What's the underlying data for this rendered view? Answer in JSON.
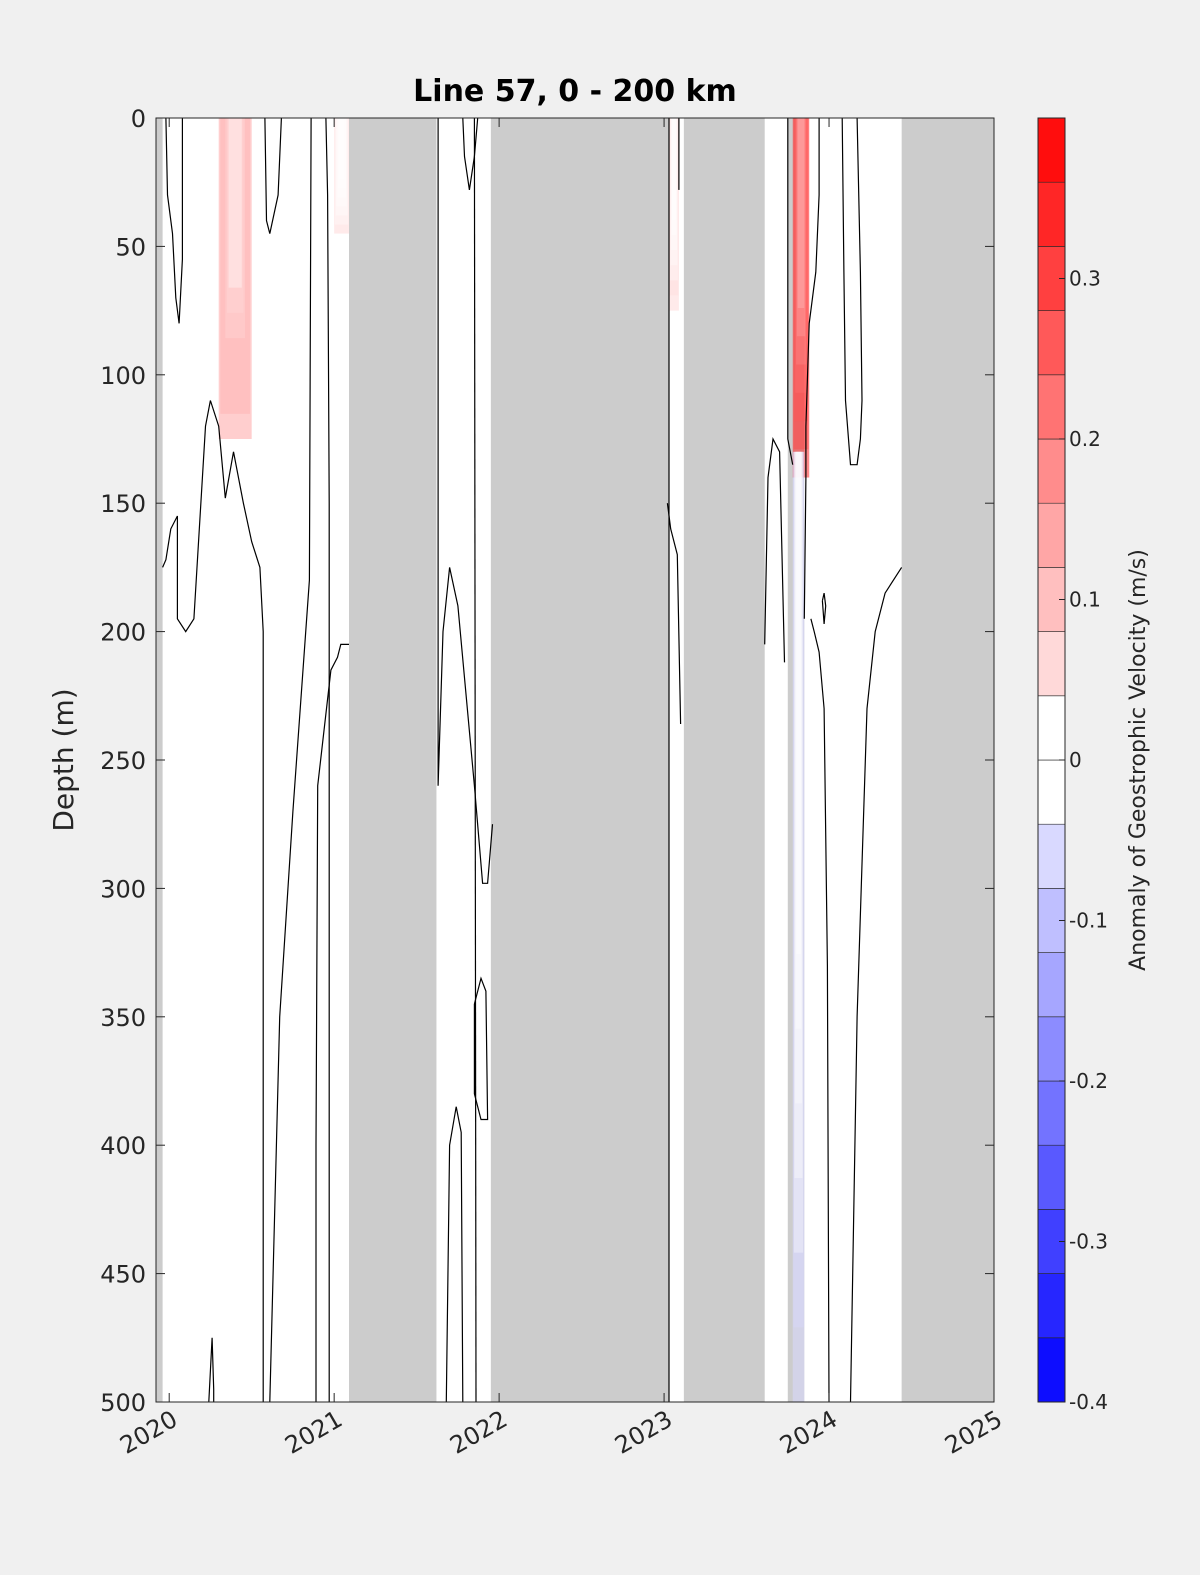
{
  "chart_data": {
    "type": "heatmap",
    "title": "Line 57, 0 - 200 km",
    "ylabel": "Depth (m)",
    "colorbar_label": "Anomaly of Geostrophic Velocity (m/s)",
    "x_ticks": [
      "2020",
      "2021",
      "2022",
      "2023",
      "2024",
      "2025"
    ],
    "x_range": [
      2019.92,
      2025.0
    ],
    "y_ticks": [
      "0",
      "50",
      "100",
      "150",
      "200",
      "250",
      "300",
      "350",
      "400",
      "450",
      "500"
    ],
    "y_range": [
      0,
      500
    ],
    "y_reversed": true,
    "colorbar_ticks": [
      "0.3",
      "0.2",
      "0.1",
      "0",
      "-0.1",
      "-0.2",
      "-0.3",
      "-0.4"
    ],
    "colorbar_range": [
      -0.4,
      0.4
    ],
    "colorbar_levels": 20,
    "colors": {
      "missing_data": "#cccccc",
      "positive": "#ff0000",
      "negative": "#0000ff",
      "zero": "#ffffff",
      "background": "#f0f0f0",
      "contour": "#000000"
    },
    "missing_data_periods": [
      [
        2019.92,
        2019.96
      ],
      [
        2021.09,
        2021.62
      ],
      [
        2021.95,
        2023.03
      ],
      [
        2023.12,
        2023.61
      ],
      [
        2023.75,
        2023.85
      ],
      [
        2024.44,
        2025.0
      ]
    ],
    "anomaly_patches": [
      {
        "x": [
          2020.3,
          2020.5
        ],
        "depth": [
          0,
          125
        ],
        "peak": 0.14
      },
      {
        "x": [
          2023.78,
          2023.88
        ],
        "depth": [
          0,
          140
        ],
        "peak": 0.35
      },
      {
        "x": [
          2023.03,
          2023.09
        ],
        "depth": [
          0,
          75
        ],
        "peak": 0.05
      },
      {
        "x": [
          2020.68,
          2020.8
        ],
        "depth": [
          0,
          60
        ],
        "peak": 0.03
      },
      {
        "x": [
          2021.0,
          2021.09
        ],
        "depth": [
          0,
          45
        ],
        "peak": 0.04
      },
      {
        "x": [
          2024.1,
          2024.16
        ],
        "depth": [
          0,
          20
        ],
        "peak": 0.03
      },
      {
        "x": [
          2024.28,
          2024.44
        ],
        "depth": [
          0,
          60
        ],
        "peak": -0.03
      },
      {
        "x": [
          2020.31,
          2020.4
        ],
        "depth": [
          170,
          500
        ],
        "peak": -0.02
      },
      {
        "x": [
          2020.74,
          2020.8
        ],
        "depth": [
          440,
          500
        ],
        "peak": -0.03
      },
      {
        "x": [
          2023.03,
          2023.1
        ],
        "depth": [
          420,
          500
        ],
        "peak": -0.03
      },
      {
        "x": [
          2023.78,
          2023.85
        ],
        "depth": [
          130,
          500
        ],
        "peak": -0.05
      }
    ],
    "contours": [
      [
        [
          2019.98,
          0
        ],
        [
          2019.99,
          30
        ],
        [
          2020.02,
          45
        ],
        [
          2020.04,
          70
        ],
        [
          2020.06,
          80
        ],
        [
          2020.08,
          55
        ],
        [
          2020.08,
          0
        ]
      ],
      [
        [
          2019.96,
          175
        ],
        [
          2019.98,
          172
        ],
        [
          2020.01,
          160
        ],
        [
          2020.05,
          155
        ],
        [
          2020.05,
          195
        ],
        [
          2020.1,
          200
        ],
        [
          2020.15,
          195
        ],
        [
          2020.22,
          120
        ],
        [
          2020.25,
          110
        ],
        [
          2020.3,
          120
        ],
        [
          2020.34,
          148
        ],
        [
          2020.39,
          130
        ],
        [
          2020.45,
          150
        ],
        [
          2020.5,
          165
        ],
        [
          2020.55,
          175
        ],
        [
          2020.57,
          200
        ],
        [
          2020.57,
          500
        ]
      ],
      [
        [
          2020.58,
          0
        ],
        [
          2020.59,
          40
        ],
        [
          2020.61,
          45
        ],
        [
          2020.66,
          30
        ],
        [
          2020.68,
          0
        ]
      ],
      [
        [
          2020.24,
          500
        ],
        [
          2020.26,
          475
        ],
        [
          2020.27,
          495
        ],
        [
          2020.27,
          500
        ]
      ],
      [
        [
          2020.61,
          500
        ],
        [
          2020.67,
          350
        ],
        [
          2020.75,
          270
        ],
        [
          2020.85,
          180
        ],
        [
          2020.86,
          0
        ]
      ],
      [
        [
          2020.89,
          500
        ],
        [
          2020.89,
          400
        ],
        [
          2020.9,
          260
        ],
        [
          2020.98,
          215
        ],
        [
          2021.02,
          210
        ],
        [
          2021.04,
          205
        ],
        [
          2021.09,
          205
        ]
      ],
      [
        [
          2020.95,
          0
        ],
        [
          2020.96,
          30
        ],
        [
          2020.97,
          150
        ],
        [
          2020.97,
          500
        ]
      ],
      [
        [
          2021.63,
          0
        ],
        [
          2021.63,
          260
        ],
        [
          2021.66,
          200
        ],
        [
          2021.7,
          175
        ],
        [
          2021.75,
          190
        ],
        [
          2021.85,
          260
        ],
        [
          2021.9,
          298
        ],
        [
          2021.93,
          298
        ],
        [
          2021.96,
          275
        ]
      ],
      [
        [
          2021.78,
          0
        ],
        [
          2021.79,
          15
        ],
        [
          2021.82,
          28
        ],
        [
          2021.85,
          15
        ],
        [
          2021.87,
          0
        ]
      ],
      [
        [
          2021.68,
          500
        ],
        [
          2021.7,
          400
        ],
        [
          2021.74,
          385
        ],
        [
          2021.77,
          395
        ],
        [
          2021.78,
          500
        ]
      ],
      [
        [
          2021.85,
          0
        ],
        [
          2021.86,
          500
        ]
      ],
      [
        [
          2021.85,
          345
        ],
        [
          2021.89,
          335
        ],
        [
          2021.92,
          340
        ],
        [
          2021.93,
          390
        ],
        [
          2021.89,
          390
        ],
        [
          2021.85,
          380
        ],
        [
          2021.85,
          345
        ]
      ],
      [
        [
          2023.02,
          150
        ],
        [
          2023.04,
          160
        ],
        [
          2023.08,
          170
        ],
        [
          2023.1,
          236
        ]
      ],
      [
        [
          2023.09,
          0
        ],
        [
          2023.09,
          28
        ]
      ],
      [
        [
          2023.61,
          205
        ],
        [
          2023.63,
          140
        ],
        [
          2023.66,
          125
        ],
        [
          2023.7,
          130
        ],
        [
          2023.73,
          212
        ]
      ],
      [
        [
          2023.75,
          0
        ],
        [
          2023.75,
          125
        ],
        [
          2023.78,
          135
        ]
      ],
      [
        [
          2023.89,
          195
        ],
        [
          2023.91,
          200
        ],
        [
          2023.94,
          208
        ],
        [
          2023.97,
          230
        ],
        [
          2023.99,
          330
        ],
        [
          2024.0,
          500
        ]
      ],
      [
        [
          2023.94,
          0
        ],
        [
          2023.94,
          30
        ],
        [
          2023.92,
          60
        ],
        [
          2023.88,
          80
        ],
        [
          2023.86,
          120
        ],
        [
          2023.86,
          140
        ],
        [
          2023.85,
          195
        ]
      ],
      [
        [
          2023.96,
          188
        ],
        [
          2023.97,
          185
        ],
        [
          2023.98,
          190
        ],
        [
          2023.97,
          197
        ],
        [
          2023.96,
          188
        ]
      ],
      [
        [
          2024.08,
          0
        ],
        [
          2024.09,
          60
        ],
        [
          2024.1,
          110
        ],
        [
          2024.13,
          135
        ],
        [
          2024.17,
          135
        ],
        [
          2024.19,
          125
        ],
        [
          2024.2,
          110
        ],
        [
          2024.19,
          60
        ],
        [
          2024.17,
          0
        ]
      ],
      [
        [
          2024.13,
          500
        ],
        [
          2024.17,
          350
        ],
        [
          2024.23,
          230
        ],
        [
          2024.28,
          200
        ],
        [
          2024.34,
          185
        ],
        [
          2024.44,
          175
        ]
      ],
      [
        [
          2023.03,
          0
        ],
        [
          2023.03,
          500
        ]
      ]
    ]
  }
}
